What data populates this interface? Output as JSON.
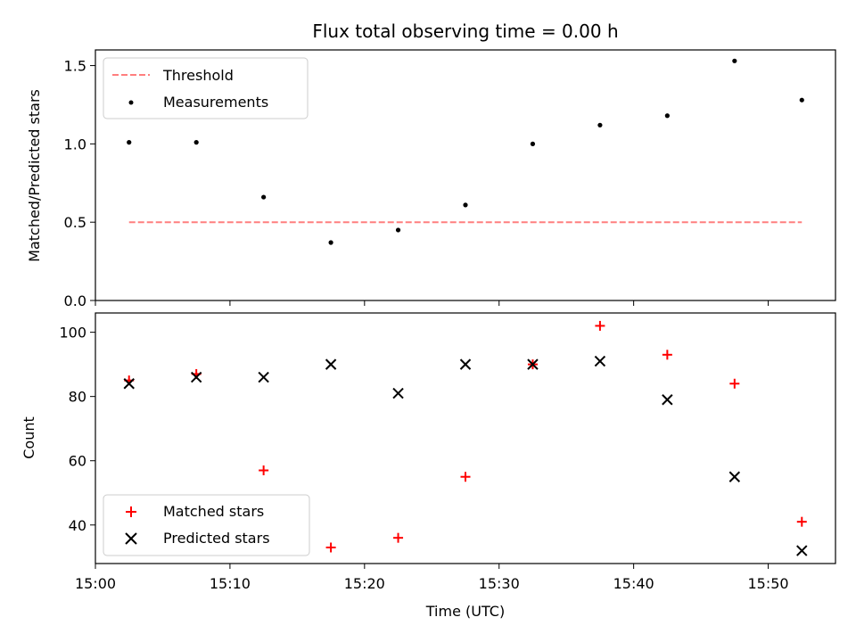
{
  "chart_data": [
    {
      "type": "scatter",
      "title": "Flux total observing time = 0.00 h",
      "ylabel": "Matched/Predicted stars",
      "xlabel": "",
      "xlim": [
        "15:00",
        "15:55"
      ],
      "ylim": [
        0,
        1.6
      ],
      "yticks": [
        "0.0",
        "0.5",
        "1.0",
        "1.5"
      ],
      "grid": false,
      "legend_position": "top-left",
      "series": [
        {
          "name": "Threshold",
          "kind": "line",
          "style": "dashed",
          "color": "#ff7f7f",
          "x": [
            "15:02.5",
            "15:52.5"
          ],
          "values": [
            0.5,
            0.5
          ]
        },
        {
          "name": "Measurements",
          "kind": "scatter",
          "marker": "dot",
          "color": "#000000",
          "x": [
            "15:02.5",
            "15:07.5",
            "15:12.5",
            "15:17.5",
            "15:22.5",
            "15:27.5",
            "15:32.5",
            "15:37.5",
            "15:42.5",
            "15:47.5",
            "15:52.5"
          ],
          "values": [
            1.01,
            1.01,
            0.66,
            0.37,
            0.45,
            0.61,
            1.0,
            1.12,
            1.18,
            1.53,
            1.28
          ]
        }
      ]
    },
    {
      "type": "scatter",
      "title": "",
      "ylabel": "Count",
      "xlabel": "Time (UTC)",
      "xlim": [
        "15:00",
        "15:55"
      ],
      "ylim": [
        28,
        106
      ],
      "xticks": [
        "15:00",
        "15:10",
        "15:20",
        "15:30",
        "15:40",
        "15:50"
      ],
      "yticks": [
        "40",
        "60",
        "80",
        "100"
      ],
      "grid": false,
      "legend_position": "bottom-left",
      "series": [
        {
          "name": "Matched stars",
          "kind": "scatter",
          "marker": "plus",
          "color": "#ff0000",
          "x": [
            "15:02.5",
            "15:07.5",
            "15:12.5",
            "15:17.5",
            "15:22.5",
            "15:27.5",
            "15:32.5",
            "15:37.5",
            "15:42.5",
            "15:47.5",
            "15:52.5"
          ],
          "values": [
            85,
            87,
            57,
            33,
            36,
            55,
            90,
            102,
            93,
            84,
            41
          ]
        },
        {
          "name": "Predicted stars",
          "kind": "scatter",
          "marker": "x",
          "color": "#000000",
          "x": [
            "15:02.5",
            "15:07.5",
            "15:12.5",
            "15:17.5",
            "15:22.5",
            "15:27.5",
            "15:32.5",
            "15:37.5",
            "15:42.5",
            "15:47.5",
            "15:52.5"
          ],
          "values": [
            84,
            86,
            86,
            90,
            81,
            90,
            90,
            91,
            79,
            55,
            32
          ]
        }
      ]
    }
  ]
}
